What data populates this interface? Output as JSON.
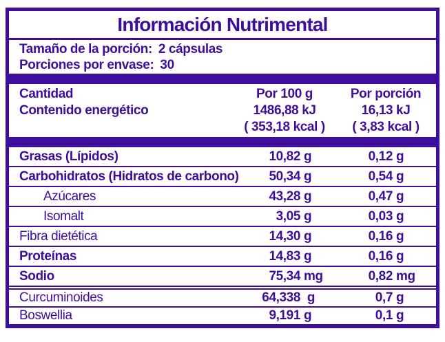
{
  "colors": {
    "purple": "#3E0D9C",
    "background": "#FFFFFF"
  },
  "title": "Información Nutrimental",
  "serving": {
    "line1_label": "Tamaño de la porción:",
    "line1_value": "2 cápsulas",
    "line2_label": "Porciones por envase:",
    "line2_value": "30"
  },
  "header": {
    "label_line1": "Cantidad",
    "label_line2": "Contenido energético",
    "col_100g": {
      "title": "Por 100 g",
      "kj": "1486,88 kJ",
      "kcal": "( 353,18 kcal )"
    },
    "col_portion": {
      "title": "Por porción",
      "kj": "16,13 kJ",
      "kcal": "( 3,83 kcal )"
    }
  },
  "rows": [
    {
      "label": "Grasas (Lípidos)",
      "per_100g": {
        "num": "10,82",
        "unit": "g"
      },
      "per_portion": {
        "num": "0,12",
        "unit": "g"
      }
    },
    {
      "label": "Carbohidratos (Hidratos de carbono)",
      "per_100g": {
        "num": "50,34",
        "unit": "g"
      },
      "per_portion": {
        "num": "0,54",
        "unit": "g"
      }
    },
    {
      "label": "Azúcares",
      "per_100g": {
        "num": "43,28",
        "unit": "g"
      },
      "per_portion": {
        "num": "0,47",
        "unit": "g"
      }
    },
    {
      "label": "Isomalt",
      "per_100g": {
        "num": "3,05",
        "unit": "g"
      },
      "per_portion": {
        "num": "0,03",
        "unit": "g"
      }
    },
    {
      "label": "Fibra dietética",
      "per_100g": {
        "num": "14,30",
        "unit": "g"
      },
      "per_portion": {
        "num": "0,16",
        "unit": "g"
      }
    },
    {
      "label": "Proteínas",
      "per_100g": {
        "num": "14,83",
        "unit": "g"
      },
      "per_portion": {
        "num": "0,16",
        "unit": "g"
      }
    },
    {
      "label": "Sodio",
      "per_100g": {
        "num": "75,34",
        "unit": "mg"
      },
      "per_portion": {
        "num": "0,82",
        "unit": "mg"
      }
    }
  ],
  "extra_rows": [
    {
      "label": "Curcuminoides",
      "per_100g": {
        "num": "64,338",
        "unit": " g"
      },
      "per_portion": {
        "num": "0,7",
        "unit": "g"
      }
    },
    {
      "label": "Boswellia",
      "per_100g": {
        "num": "9,191",
        "unit": "g"
      },
      "per_portion": {
        "num": "0,1",
        "unit": "g"
      }
    }
  ]
}
